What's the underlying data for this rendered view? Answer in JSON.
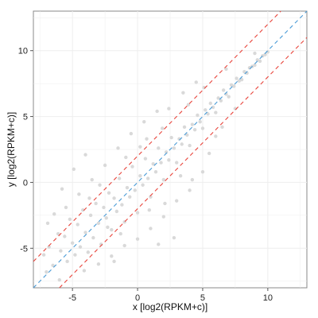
{
  "chart_data": {
    "type": "scatter",
    "title": "",
    "xlabel": "x [log2(RPKM+c)]",
    "ylabel": "y [log2(RPKM+c)]",
    "xlim": [
      -8,
      13
    ],
    "ylim": [
      -8,
      13
    ],
    "x_ticks": [
      -5,
      0,
      5,
      10
    ],
    "y_ticks": [
      -5,
      0,
      5,
      10
    ],
    "grid": true,
    "legend": "none",
    "colors": {
      "points": "#d9d9d9",
      "identity_line": "#4a9bd6",
      "fold_lines": "#e8453c",
      "grid": "#eeeeee",
      "frame": "#888888"
    },
    "reference_lines": [
      {
        "name": "y = x",
        "slope": 1,
        "intercept": 0,
        "style": "dashed",
        "color": "#4a9bd6"
      },
      {
        "name": "y = x + 2",
        "slope": 1,
        "intercept": 2,
        "style": "dashed",
        "color": "#e8453c"
      },
      {
        "name": "y = x - 2",
        "slope": 1,
        "intercept": -2,
        "style": "dashed",
        "color": "#e8453c"
      }
    ],
    "series": [
      {
        "points": [
          [
            -7.2,
            -5.5
          ],
          [
            -6.8,
            -4.9
          ],
          [
            -6.5,
            -6.3
          ],
          [
            -6.1,
            -3.9
          ],
          [
            -5.9,
            -5.2
          ],
          [
            -5.6,
            -4.1
          ],
          [
            -5.4,
            -6.0
          ],
          [
            -5.2,
            -2.8
          ],
          [
            -5.0,
            -4.6
          ],
          [
            -4.8,
            -5.5
          ],
          [
            -4.6,
            -3.2
          ],
          [
            -4.4,
            -4.9
          ],
          [
            -4.2,
            -2.1
          ],
          [
            -4.0,
            -3.8
          ],
          [
            -3.8,
            -5.3
          ],
          [
            -3.6,
            -2.5
          ],
          [
            -3.4,
            -4.2
          ],
          [
            -3.2,
            -1.6
          ],
          [
            -3.0,
            -3.1
          ],
          [
            -2.8,
            -4.7
          ],
          [
            -2.6,
            -1.9
          ],
          [
            -2.4,
            -2.7
          ],
          [
            -2.2,
            -0.8
          ],
          [
            -2.0,
            -3.6
          ],
          [
            -1.8,
            -1.2
          ],
          [
            -1.6,
            -2.2
          ],
          [
            -1.4,
            0.3
          ],
          [
            -1.2,
            -1.7
          ],
          [
            -1.0,
            -3.0
          ],
          [
            -0.8,
            -0.4
          ],
          [
            -0.6,
            -1.1
          ],
          [
            -0.4,
            1.2
          ],
          [
            -0.2,
            -0.6
          ],
          [
            0.0,
            -2.3
          ],
          [
            0.2,
            0.5
          ],
          [
            0.4,
            -0.2
          ],
          [
            0.6,
            1.8
          ],
          [
            0.8,
            0.3
          ],
          [
            1.0,
            -1.1
          ],
          [
            1.2,
            1.4
          ],
          [
            1.4,
            0.8
          ],
          [
            1.6,
            2.6
          ],
          [
            1.8,
            1.5
          ],
          [
            2.0,
            0.2
          ],
          [
            2.2,
            2.3
          ],
          [
            2.4,
            1.7
          ],
          [
            2.6,
            3.4
          ],
          [
            2.8,
            2.6
          ],
          [
            3.0,
            1.5
          ],
          [
            3.2,
            3.3
          ],
          [
            3.4,
            2.9
          ],
          [
            3.6,
            4.2
          ],
          [
            3.8,
            3.6
          ],
          [
            4.0,
            2.8
          ],
          [
            4.2,
            4.4
          ],
          [
            4.4,
            4.0
          ],
          [
            4.6,
            5.1
          ],
          [
            4.8,
            4.6
          ],
          [
            5.0,
            4.1
          ],
          [
            5.2,
            5.5
          ],
          [
            5.4,
            5.2
          ],
          [
            5.6,
            6.0
          ],
          [
            5.8,
            5.7
          ],
          [
            6.0,
            5.3
          ],
          [
            6.2,
            6.4
          ],
          [
            6.4,
            6.2
          ],
          [
            6.6,
            7.0
          ],
          [
            6.8,
            6.7
          ],
          [
            7.0,
            6.5
          ],
          [
            7.2,
            7.4
          ],
          [
            7.4,
            7.3
          ],
          [
            7.6,
            7.9
          ],
          [
            7.8,
            7.7
          ],
          [
            8.0,
            7.8
          ],
          [
            8.2,
            8.4
          ],
          [
            8.4,
            8.3
          ],
          [
            8.6,
            8.7
          ],
          [
            8.8,
            8.8
          ],
          [
            9.0,
            8.9
          ],
          [
            9.2,
            9.3
          ],
          [
            9.4,
            9.2
          ],
          [
            9.6,
            9.6
          ],
          [
            9.8,
            9.7
          ],
          [
            10.0,
            9.9
          ],
          [
            9.0,
            9.8
          ],
          [
            -6.0,
            -7.4
          ],
          [
            -7.0,
            -6.8
          ],
          [
            -5.5,
            -1.9
          ],
          [
            -4.5,
            -0.9
          ],
          [
            -3.5,
            0.2
          ],
          [
            -2.5,
            1.3
          ],
          [
            -1.5,
            2.6
          ],
          [
            -0.5,
            3.7
          ],
          [
            0.5,
            4.6
          ],
          [
            1.5,
            5.4
          ],
          [
            -3.0,
            -6.2
          ],
          [
            -2.0,
            -5.6
          ],
          [
            -1.0,
            -4.8
          ],
          [
            0.0,
            -4.3
          ],
          [
            1.0,
            -3.5
          ],
          [
            2.0,
            -2.6
          ],
          [
            3.0,
            -1.4
          ],
          [
            4.0,
            -0.6
          ],
          [
            5.0,
            0.8
          ],
          [
            5.5,
            2.2
          ],
          [
            6.0,
            3.5
          ],
          [
            2.4,
            5.6
          ],
          [
            3.5,
            6.8
          ],
          [
            4.5,
            7.6
          ],
          [
            -6.4,
            -2.4
          ],
          [
            -5.8,
            -0.5
          ],
          [
            -4.9,
            1.0
          ],
          [
            -4.0,
            2.1
          ],
          [
            -1.8,
            -6.0
          ],
          [
            1.6,
            -4.7
          ],
          [
            6.5,
            4.2
          ],
          [
            7.5,
            5.6
          ],
          [
            4.2,
            0.2
          ],
          [
            2.8,
            -4.2
          ],
          [
            -0.9,
            1.9
          ],
          [
            0.7,
            3.3
          ],
          [
            -2.9,
            -0.2
          ],
          [
            3.9,
            5.9
          ],
          [
            5.1,
            7.2
          ],
          [
            6.8,
            8.6
          ],
          [
            -4.1,
            -6.7
          ],
          [
            -6.9,
            -3.1
          ],
          [
            0.2,
            2.7
          ],
          [
            1.9,
            4.1
          ],
          [
            -1.3,
            -3.9
          ],
          [
            3.3,
            0.5
          ],
          [
            2.1,
            -1.6
          ],
          [
            -2.3,
            -3.4
          ],
          [
            -3.7,
            -1.2
          ],
          [
            0.9,
            -2.1
          ]
        ]
      }
    ]
  }
}
